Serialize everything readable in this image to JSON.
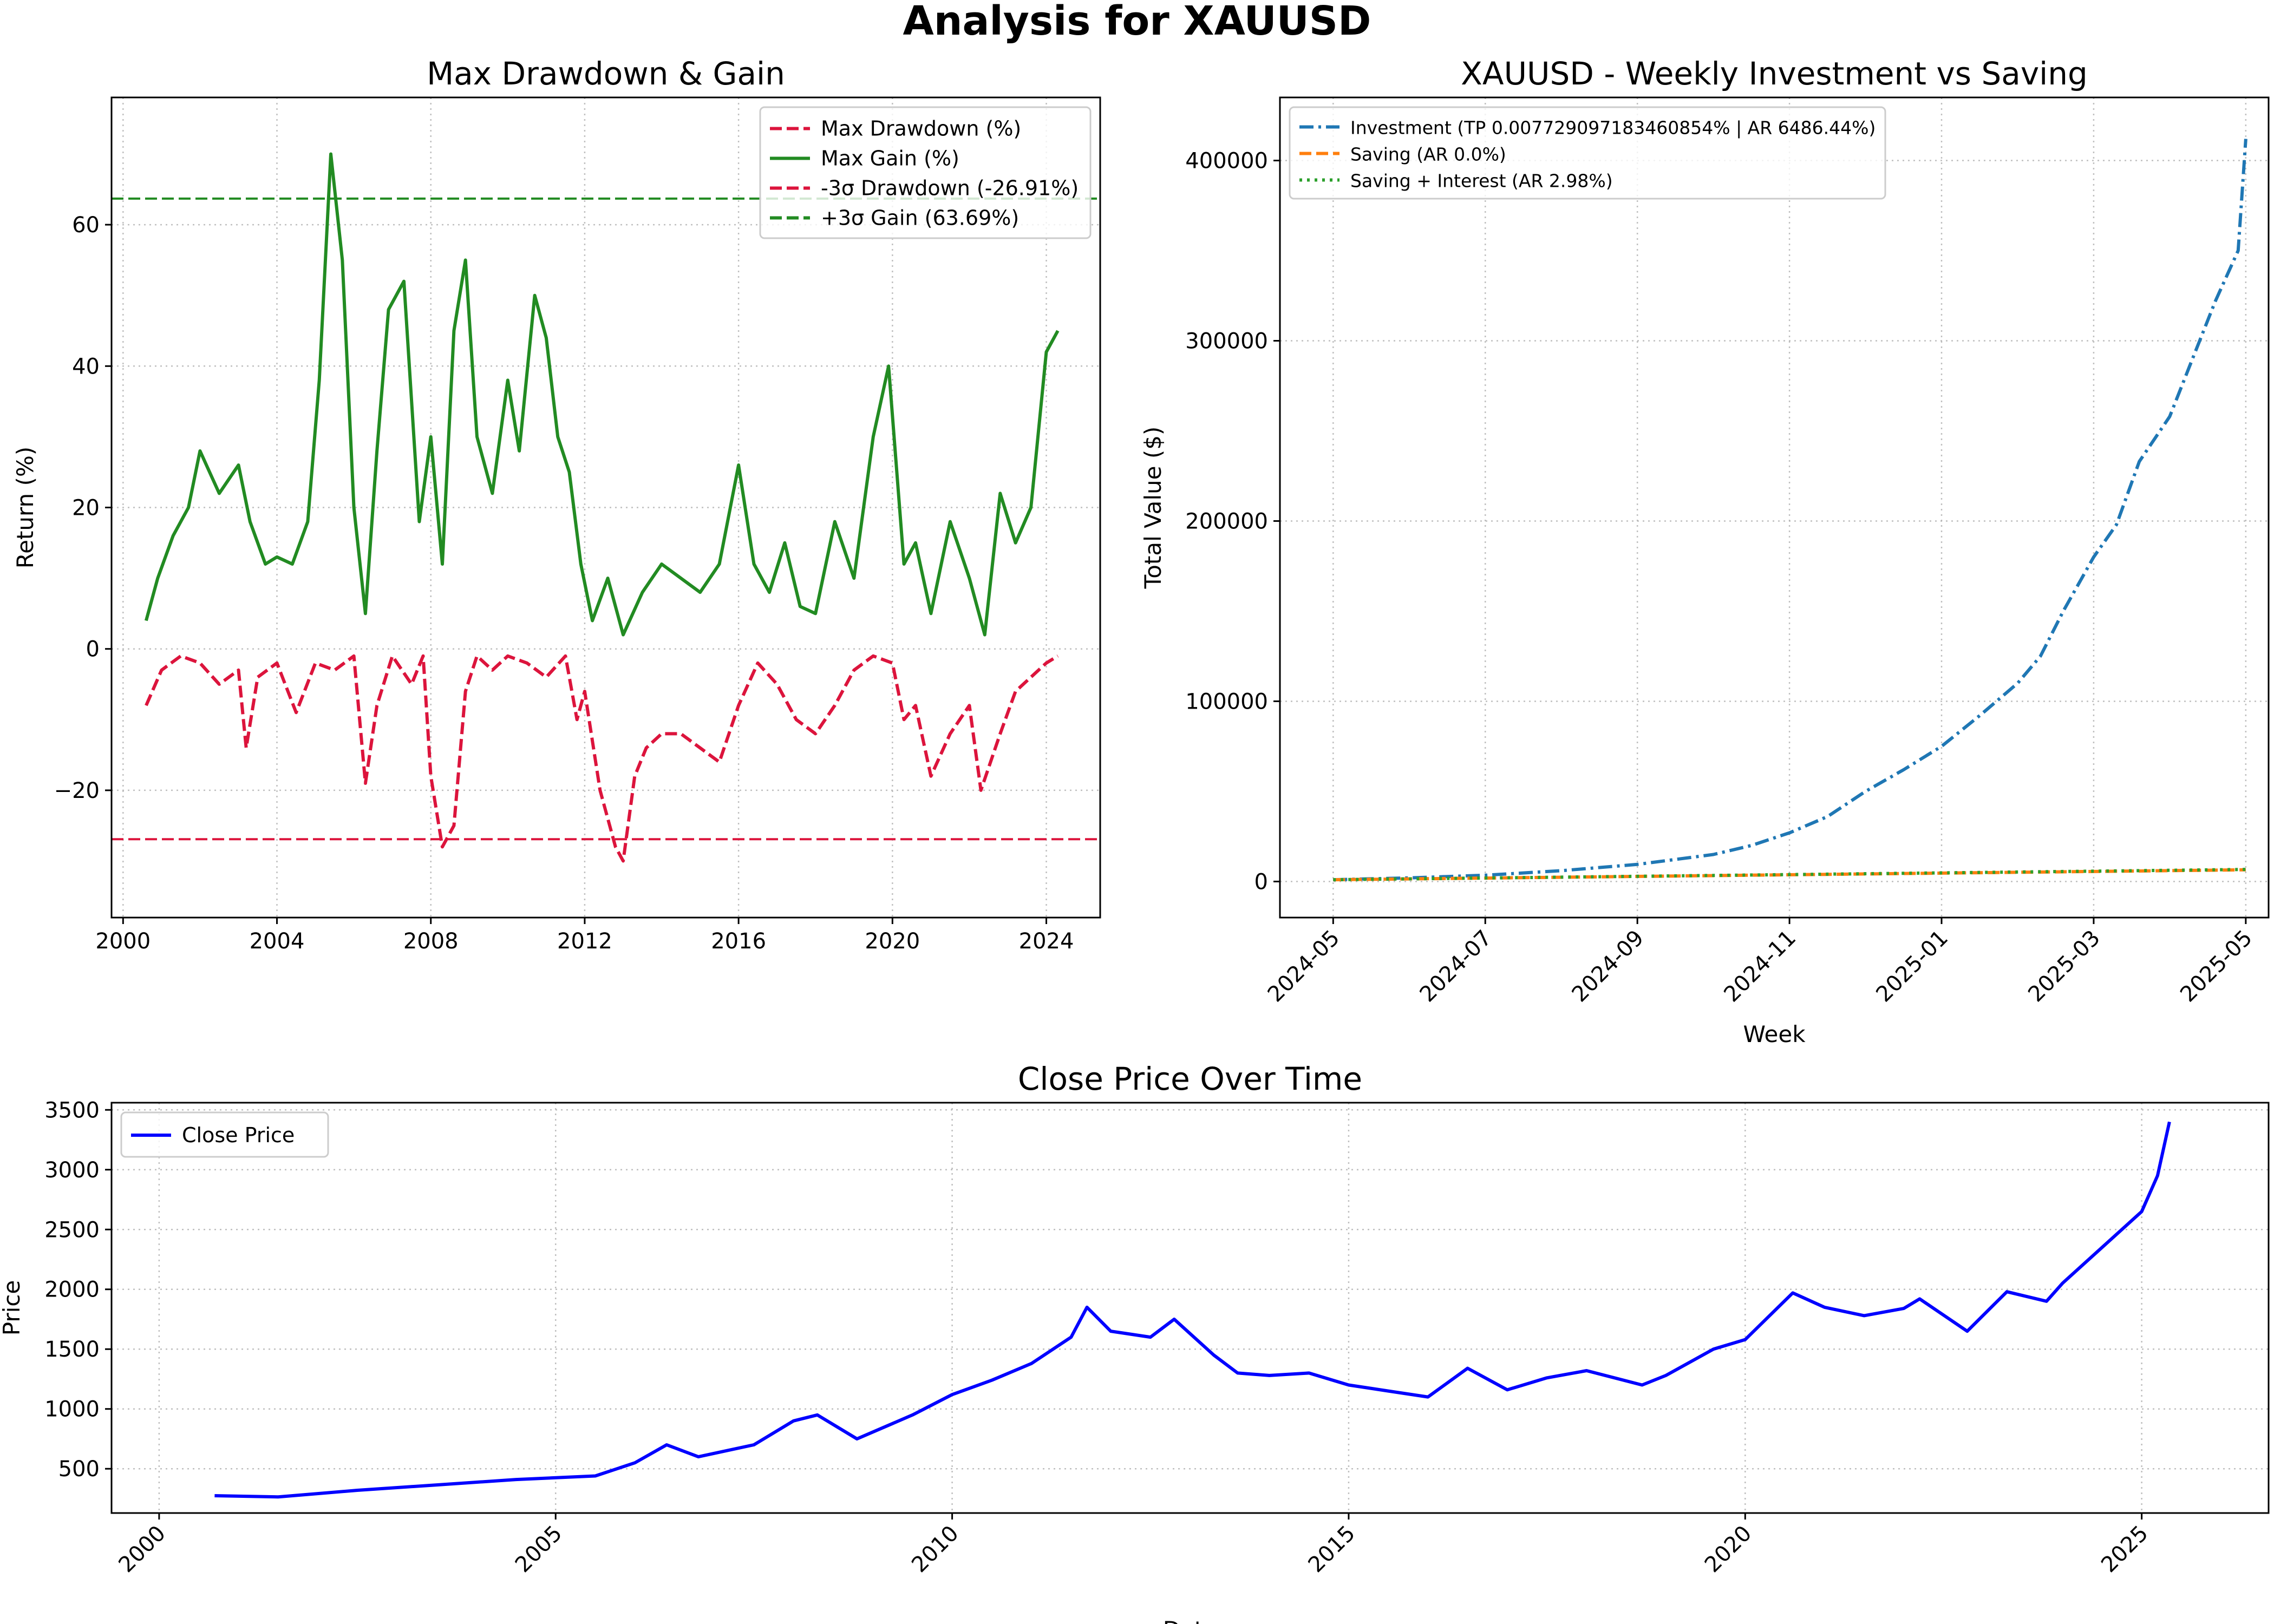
{
  "figure": {
    "suptitle": "Analysis for XAUUSD"
  },
  "chart_data": [
    {
      "id": "drawdown",
      "type": "line",
      "title": "Max Drawdown & Gain",
      "xlabel": "",
      "ylabel": "Return (%)",
      "xlim": [
        1999.7,
        2025.4
      ],
      "ylim": [
        -38,
        78
      ],
      "xticks": [
        2000,
        2004,
        2008,
        2012,
        2016,
        2020,
        2024
      ],
      "xtick_labels": [
        "2000",
        "2004",
        "2008",
        "2012",
        "2016",
        "2020",
        "2024"
      ],
      "yticks": [
        -20,
        0,
        20,
        40,
        60
      ],
      "ytick_labels": [
        "−20",
        "0",
        "20",
        "40",
        "60"
      ],
      "grid": true,
      "legend_position": "upper right",
      "series": [
        {
          "name": "Max Drawdown (%)",
          "color": "#dc143c",
          "style": "dashed",
          "x": [
            2000.6,
            2001.0,
            2001.5,
            2002.0,
            2002.5,
            2003.0,
            2003.2,
            2003.5,
            2004.0,
            2004.5,
            2005.0,
            2005.5,
            2006.0,
            2006.3,
            2006.6,
            2007.0,
            2007.5,
            2007.8,
            2008.0,
            2008.3,
            2008.6,
            2008.9,
            2009.2,
            2009.6,
            2010.0,
            2010.5,
            2011.0,
            2011.5,
            2011.8,
            2012.0,
            2012.4,
            2012.8,
            2013.0,
            2013.3,
            2013.6,
            2014.0,
            2014.5,
            2015.0,
            2015.5,
            2016.0,
            2016.5,
            2017.0,
            2017.5,
            2018.0,
            2018.5,
            2019.0,
            2019.5,
            2020.0,
            2020.3,
            2020.6,
            2021.0,
            2021.5,
            2022.0,
            2022.3,
            2022.8,
            2023.2,
            2023.6,
            2024.0,
            2024.3
          ],
          "y": [
            -8,
            -3,
            -1,
            -2,
            -5,
            -3,
            -14,
            -4,
            -2,
            -9,
            -2,
            -3,
            -1,
            -19,
            -8,
            -1,
            -5,
            -1,
            -18,
            -28,
            -25,
            -6,
            -1,
            -3,
            -1,
            -2,
            -4,
            -1,
            -10,
            -6,
            -20,
            -28,
            -30,
            -18,
            -14,
            -12,
            -12,
            -14,
            -16,
            -8,
            -2,
            -5,
            -10,
            -12,
            -8,
            -3,
            -1,
            -2,
            -10,
            -8,
            -18,
            -12,
            -8,
            -20,
            -12,
            -6,
            -4,
            -2,
            -1
          ]
        },
        {
          "name": "Max Gain (%)",
          "color": "#228b22",
          "style": "solid",
          "x": [
            2000.6,
            2000.9,
            2001.3,
            2001.7,
            2002.0,
            2002.5,
            2003.0,
            2003.3,
            2003.7,
            2004.0,
            2004.4,
            2004.8,
            2005.1,
            2005.4,
            2005.7,
            2006.0,
            2006.3,
            2006.6,
            2006.9,
            2007.3,
            2007.7,
            2008.0,
            2008.3,
            2008.6,
            2008.9,
            2009.2,
            2009.6,
            2010.0,
            2010.3,
            2010.7,
            2011.0,
            2011.3,
            2011.6,
            2011.9,
            2012.2,
            2012.6,
            2013.0,
            2013.5,
            2014.0,
            2014.5,
            2015.0,
            2015.5,
            2016.0,
            2016.4,
            2016.8,
            2017.2,
            2017.6,
            2018.0,
            2018.5,
            2019.0,
            2019.5,
            2019.9,
            2020.3,
            2020.6,
            2021.0,
            2021.5,
            2022.0,
            2022.4,
            2022.8,
            2023.2,
            2023.6,
            2024.0,
            2024.3
          ],
          "y": [
            4,
            10,
            16,
            20,
            28,
            22,
            26,
            18,
            12,
            13,
            12,
            18,
            38,
            70,
            55,
            20,
            5,
            28,
            48,
            52,
            18,
            30,
            12,
            45,
            55,
            30,
            22,
            38,
            28,
            50,
            44,
            30,
            25,
            12,
            4,
            10,
            2,
            8,
            12,
            10,
            8,
            12,
            26,
            12,
            8,
            15,
            6,
            5,
            18,
            10,
            30,
            40,
            12,
            15,
            5,
            18,
            10,
            2,
            22,
            15,
            20,
            42,
            45
          ]
        },
        {
          "name": "-3σ Drawdown (-26.91%)",
          "color": "#dc143c",
          "style": "dashed-hline",
          "value": -26.91
        },
        {
          "name": "+3σ Gain (63.69%)",
          "color": "#228b22",
          "style": "dashed-hline",
          "value": 63.69
        }
      ]
    },
    {
      "id": "investment",
      "type": "line",
      "title": "XAUUSD - Weekly Investment vs Saving",
      "xlabel": "Week",
      "ylabel": "Total Value ($)",
      "xlim": [
        -0.7,
        12.3
      ],
      "ylim": [
        -20000,
        435000
      ],
      "xticks": [
        0,
        2,
        4,
        6,
        8,
        10,
        12
      ],
      "xtick_labels": [
        "2024-05",
        "2024-07",
        "2024-09",
        "2024-11",
        "2025-01",
        "2025-03",
        "2025-05"
      ],
      "yticks": [
        0,
        100000,
        200000,
        300000,
        400000
      ],
      "ytick_labels": [
        "0",
        "100000",
        "200000",
        "300000",
        "400000"
      ],
      "grid": true,
      "legend_position": "upper left",
      "series": [
        {
          "name": "Investment (TP 0.007729097183460854% | AR 6486.44%)",
          "color": "#1f77b4",
          "style": "dashdot",
          "x": [
            0,
            1,
            2,
            3,
            4,
            5,
            5.5,
            6,
            6.5,
            7,
            7.5,
            8,
            8.5,
            9,
            9.3,
            9.6,
            10,
            10.3,
            10.6,
            11,
            11.3,
            11.6,
            11.9,
            12
          ],
          "y": [
            1000,
            2000,
            3500,
            6000,
            9500,
            15000,
            20000,
            27000,
            36000,
            50000,
            62000,
            75000,
            92000,
            110000,
            125000,
            150000,
            180000,
            198000,
            233000,
            258000,
            290000,
            322000,
            350000,
            412000
          ]
        },
        {
          "name": "Saving (AR 0.0%)",
          "color": "#ff7f0e",
          "style": "dashed",
          "x": [
            0,
            12
          ],
          "y": [
            1000,
            6500
          ]
        },
        {
          "name": "Saving + Interest (AR 2.98%)",
          "color": "#2ca02c",
          "style": "dotted",
          "x": [
            0,
            12
          ],
          "y": [
            1000,
            6700
          ]
        }
      ]
    },
    {
      "id": "price",
      "type": "line",
      "title": "Close Price Over Time",
      "xlabel": "Date",
      "ylabel": "Price",
      "xlim": [
        1999.4,
        2026.6
      ],
      "ylim": [
        130,
        3560
      ],
      "xticks": [
        2000,
        2005,
        2010,
        2015,
        2020,
        2025
      ],
      "xtick_labels": [
        "2000",
        "2005",
        "2010",
        "2015",
        "2020",
        "2025"
      ],
      "yticks": [
        500,
        1000,
        1500,
        2000,
        2500,
        3000,
        3500
      ],
      "ytick_labels": [
        "500",
        "1000",
        "1500",
        "2000",
        "2500",
        "3000",
        "3500"
      ],
      "grid": true,
      "legend_position": "upper left",
      "series": [
        {
          "name": "Close Price",
          "color": "#0000ff",
          "style": "solid",
          "x": [
            2000.7,
            2001.5,
            2002.5,
            2003.5,
            2004.5,
            2005.5,
            2006.0,
            2006.4,
            2006.8,
            2007.5,
            2008.0,
            2008.3,
            2008.8,
            2009.5,
            2010.0,
            2010.5,
            2011.0,
            2011.5,
            2011.7,
            2012.0,
            2012.5,
            2012.8,
            2013.3,
            2013.6,
            2014.0,
            2014.5,
            2015.0,
            2015.5,
            2016.0,
            2016.5,
            2017.0,
            2017.5,
            2018.0,
            2018.7,
            2019.0,
            2019.6,
            2020.0,
            2020.6,
            2021.0,
            2021.5,
            2022.0,
            2022.2,
            2022.8,
            2023.3,
            2023.8,
            2024.0,
            2024.5,
            2025.0,
            2025.2,
            2025.35
          ],
          "y": [
            275,
            265,
            320,
            365,
            410,
            440,
            550,
            700,
            600,
            700,
            900,
            950,
            750,
            950,
            1120,
            1240,
            1380,
            1600,
            1850,
            1650,
            1600,
            1750,
            1450,
            1300,
            1280,
            1300,
            1200,
            1150,
            1100,
            1340,
            1160,
            1260,
            1320,
            1200,
            1280,
            1500,
            1580,
            1970,
            1850,
            1780,
            1840,
            1920,
            1650,
            1980,
            1900,
            2050,
            2350,
            2650,
            2950,
            3400
          ]
        }
      ]
    }
  ]
}
